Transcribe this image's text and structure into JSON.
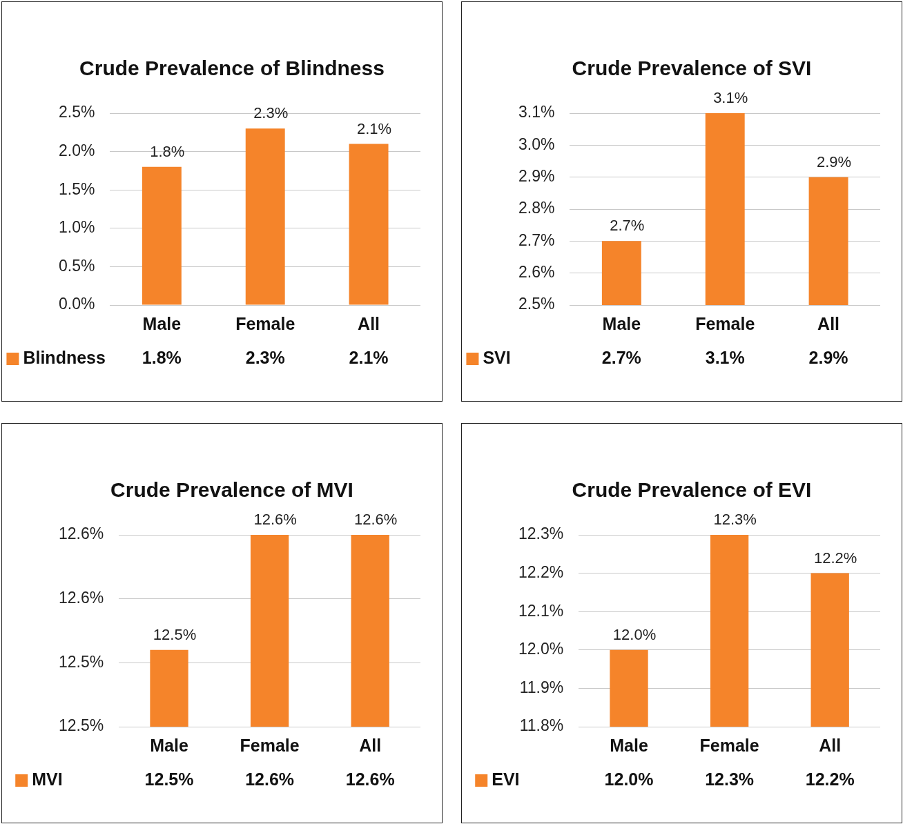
{
  "chart_data": [
    {
      "type": "bar",
      "title": "Crude Prevalence of Blindness",
      "categories": [
        "Male",
        "Female",
        "All"
      ],
      "series": [
        {
          "name": "Blindness",
          "color": "#f5842a",
          "values": [
            1.8,
            2.3,
            2.1
          ],
          "value_labels": [
            "1.8%",
            "2.3%",
            "2.1%"
          ]
        }
      ],
      "ylim": [
        0,
        2.5
      ],
      "yticks": [
        {
          "value": 0,
          "label": "0.0%"
        },
        {
          "value": 0.5,
          "label": "0.5%"
        },
        {
          "value": 1,
          "label": "1.0%"
        },
        {
          "value": 1.5,
          "label": "1.5%"
        },
        {
          "value": 2,
          "label": "2.0%"
        },
        {
          "value": 2.5,
          "label": "2.5%"
        }
      ],
      "grid": "y",
      "legend": "bottom"
    },
    {
      "type": "bar",
      "title": "Crude Prevalence of SVI",
      "categories": [
        "Male",
        "Female",
        "All"
      ],
      "series": [
        {
          "name": "SVI",
          "color": "#f5842a",
          "values": [
            2.7,
            3.1,
            2.9
          ],
          "value_labels": [
            "2.7%",
            "3.1%",
            "2.9%"
          ]
        }
      ],
      "ylim": [
        2.5,
        3.1
      ],
      "yticks": [
        {
          "value": 2.5,
          "label": "2.5%"
        },
        {
          "value": 2.6,
          "label": "2.6%"
        },
        {
          "value": 2.7,
          "label": "2.7%"
        },
        {
          "value": 2.8,
          "label": "2.8%"
        },
        {
          "value": 2.9,
          "label": "2.9%"
        },
        {
          "value": 3.0,
          "label": "3.0%"
        },
        {
          "value": 3.1,
          "label": "3.1%"
        }
      ],
      "grid": "y",
      "legend": "bottom"
    },
    {
      "type": "bar",
      "title": "Crude Prevalence of MVI",
      "categories": [
        "Male",
        "Female",
        "All"
      ],
      "series": [
        {
          "name": "MVI",
          "color": "#f5842a",
          "values": [
            12.51,
            12.6,
            12.6
          ],
          "value_labels": [
            "12.5%",
            "12.6%",
            "12.6%"
          ]
        }
      ],
      "ylim": [
        12.45,
        12.6
      ],
      "yticks": [
        {
          "value": 12.45,
          "label": "12.5%"
        },
        {
          "value": 12.5,
          "label": "12.5%"
        },
        {
          "value": 12.55,
          "label": "12.6%"
        },
        {
          "value": 12.6,
          "label": "12.6%"
        }
      ],
      "grid": "y",
      "legend": "bottom"
    },
    {
      "type": "bar",
      "title": "Crude Prevalence of EVI",
      "categories": [
        "Male",
        "Female",
        "All"
      ],
      "series": [
        {
          "name": "EVI",
          "color": "#f5842a",
          "values": [
            12.0,
            12.3,
            12.2
          ],
          "value_labels": [
            "12.0%",
            "12.3%",
            "12.2%"
          ]
        }
      ],
      "ylim": [
        11.8,
        12.3
      ],
      "yticks": [
        {
          "value": 11.8,
          "label": "11.8%"
        },
        {
          "value": 11.9,
          "label": "11.9%"
        },
        {
          "value": 12.0,
          "label": "12.0%"
        },
        {
          "value": 12.1,
          "label": "12.1%"
        },
        {
          "value": 12.2,
          "label": "12.2%"
        },
        {
          "value": 12.3,
          "label": "12.3%"
        }
      ],
      "grid": "y",
      "legend": "bottom"
    }
  ]
}
